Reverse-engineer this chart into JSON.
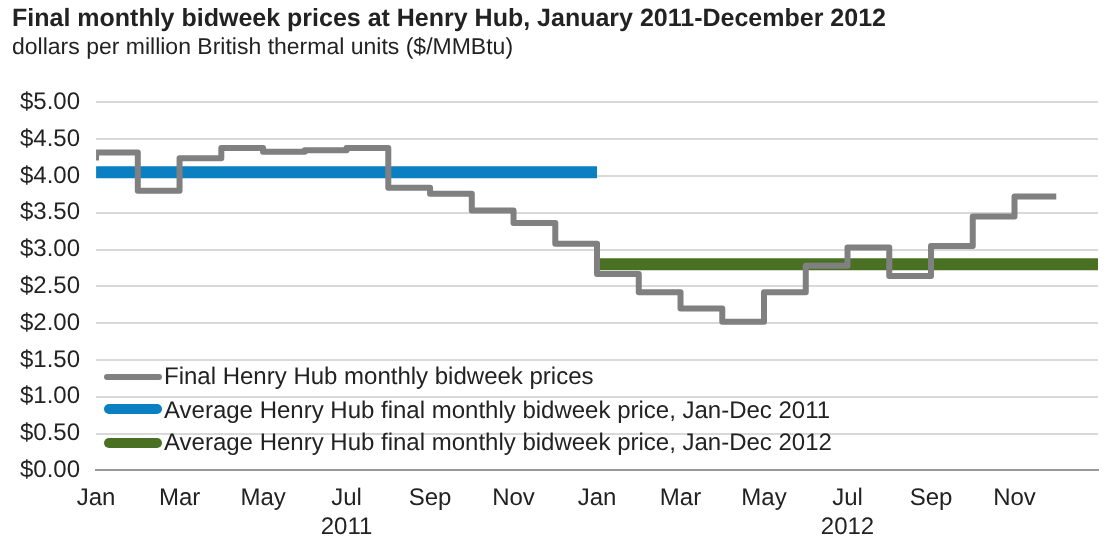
{
  "chart_data": {
    "type": "step",
    "title": "Final monthly bidweek prices at Henry Hub, January 2011-December 2012",
    "subtitle": "dollars per million British thermal units ($/MMBtu)",
    "x": [
      "2011-01",
      "2011-02",
      "2011-03",
      "2011-04",
      "2011-05",
      "2011-06",
      "2011-07",
      "2011-08",
      "2011-09",
      "2011-10",
      "2011-11",
      "2011-12",
      "2012-01",
      "2012-02",
      "2012-03",
      "2012-04",
      "2012-05",
      "2012-06",
      "2012-07",
      "2012-08",
      "2012-09",
      "2012-10",
      "2012-11",
      "2012-12"
    ],
    "series": [
      {
        "name": "Final Henry Hub monthly bidweek prices",
        "color": "#808080",
        "values": [
          4.21,
          4.32,
          3.8,
          4.24,
          4.38,
          4.33,
          4.35,
          4.38,
          3.84,
          3.76,
          3.53,
          3.36,
          3.08,
          2.67,
          2.42,
          2.2,
          2.02,
          2.42,
          2.78,
          3.03,
          2.64,
          3.05,
          3.45,
          3.72
        ]
      },
      {
        "name": "Average Henry Hub final monthly bidweek price, Jan-Dec 2011",
        "type": "line",
        "color": "#0a7fc2",
        "x": [
          "2011-01",
          "2012-01"
        ],
        "values": [
          4.05,
          4.05
        ]
      },
      {
        "name": "Average Henry Hub final monthly bidweek price, Jan-Dec 2012",
        "type": "line",
        "color": "#4a7023",
        "x": [
          "2012-01",
          "2013-01"
        ],
        "values": [
          2.8,
          2.8
        ]
      }
    ],
    "xlim": [
      "2011-01",
      "2013-01"
    ],
    "xticks": [
      {
        "value": "2011-01",
        "label": "Jan"
      },
      {
        "value": "2011-03",
        "label": "Mar"
      },
      {
        "value": "2011-05",
        "label": "May"
      },
      {
        "value": "2011-07",
        "label": "Jul\n2011"
      },
      {
        "value": "2011-09",
        "label": "Sep"
      },
      {
        "value": "2011-11",
        "label": "Nov"
      },
      {
        "value": "2012-01",
        "label": "Jan"
      },
      {
        "value": "2012-03",
        "label": "Mar"
      },
      {
        "value": "2012-05",
        "label": "May"
      },
      {
        "value": "2012-07",
        "label": "Jul\n2012"
      },
      {
        "value": "2012-09",
        "label": "Sep"
      },
      {
        "value": "2012-11",
        "label": "Nov"
      }
    ],
    "ylim": [
      0,
      5
    ],
    "yticks": [
      {
        "value": 0,
        "label": "$0.00"
      },
      {
        "value": 0.5,
        "label": "$0.50"
      },
      {
        "value": 1,
        "label": "$1.00"
      },
      {
        "value": 1.5,
        "label": "$1.50"
      },
      {
        "value": 2,
        "label": "$2.00"
      },
      {
        "value": 2.5,
        "label": "$2.50"
      },
      {
        "value": 3,
        "label": "$3.00"
      },
      {
        "value": 3.5,
        "label": "$3.50"
      },
      {
        "value": 4,
        "label": "$4.00"
      },
      {
        "value": 4.5,
        "label": "$4.50"
      },
      {
        "value": 5,
        "label": "$5.00"
      }
    ],
    "grid": "y",
    "legend": "bottom left",
    "marker": "none",
    "line_style": "solid"
  }
}
